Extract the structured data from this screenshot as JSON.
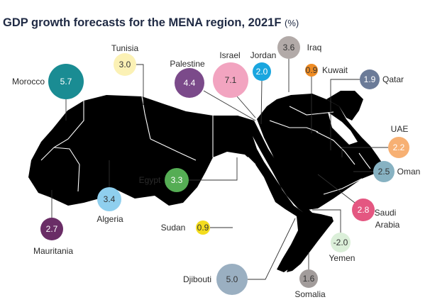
{
  "title": {
    "main": "GDP growth forecasts for the MENA region, 2021F",
    "unit": "(%)"
  },
  "map_region": "MENA",
  "colors": {
    "land": "#c3dbe3",
    "land_border": "#ffffff",
    "leader": "#333333"
  },
  "countries": [
    {
      "id": "morocco",
      "name": "Morocco",
      "value": "5.7",
      "color": "#1a8c93",
      "text_color": "#ffffff"
    },
    {
      "id": "tunisia",
      "name": "Tunisia",
      "value": "3.0",
      "color": "#fbf1b5",
      "text_color": "#333333"
    },
    {
      "id": "palestine",
      "name": "Palestine",
      "value": "4.4",
      "color": "#7b4a8a",
      "text_color": "#ffffff"
    },
    {
      "id": "israel",
      "name": "Israel",
      "value": "7.1",
      "color": "#f2a4c0",
      "text_color": "#333333"
    },
    {
      "id": "jordan",
      "name": "Jordan",
      "value": "2.0",
      "color": "#1aa6df",
      "text_color": "#ffffff"
    },
    {
      "id": "iraq",
      "name": "Iraq",
      "value": "3.6",
      "color": "#b2aaa8",
      "text_color": "#333333"
    },
    {
      "id": "kuwait",
      "name": "Kuwait",
      "value": "0.9",
      "color": "#ef8c24",
      "text_color": "#333333"
    },
    {
      "id": "qatar",
      "name": "Qatar",
      "value": "1.9",
      "color": "#6b7b98",
      "text_color": "#ffffff"
    },
    {
      "id": "uae",
      "name": "UAE",
      "value": "2.2",
      "color": "#f7b073",
      "text_color": "#ffffff"
    },
    {
      "id": "oman",
      "name": "Oman",
      "value": "2.5",
      "color": "#87b2c2",
      "text_color": "#333333"
    },
    {
      "id": "saudi-arabia",
      "name": "Saudi Arabia",
      "value": "2.8",
      "color": "#e45781",
      "text_color": "#ffffff"
    },
    {
      "id": "yemen",
      "name": "Yemen",
      "value": "-2.0",
      "color": "#dbefd9",
      "text_color": "#333333"
    },
    {
      "id": "somalia",
      "name": "Somalia",
      "value": "1.6",
      "color": "#a29c9b",
      "text_color": "#333333"
    },
    {
      "id": "djibouti",
      "name": "Djibouti",
      "value": "5.0",
      "color": "#9aafc1",
      "text_color": "#333333"
    },
    {
      "id": "sudan",
      "name": "Sudan",
      "value": "0.9",
      "color": "#f3dc1e",
      "text_color": "#333333"
    },
    {
      "id": "egypt",
      "name": "Egypt",
      "value": "3.3",
      "color": "#55ad54",
      "text_color": "#ffffff"
    },
    {
      "id": "algeria",
      "name": "Algeria",
      "value": "3.4",
      "color": "#8fcfee",
      "text_color": "#333333"
    },
    {
      "id": "mauritania",
      "name": "Mauritania",
      "value": "2.7",
      "color": "#6a2d66",
      "text_color": "#ffffff"
    }
  ]
}
